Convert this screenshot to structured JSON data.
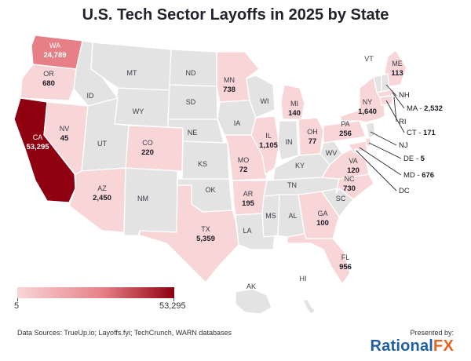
{
  "title": "U.S. Tech Sector Layoffs in 2025 by State",
  "colors": {
    "nodata": "#e3e3e3",
    "low": "#f8d6d8",
    "mid": "#e67f86",
    "high": "#8f0010",
    "brand_blue": "#1f5fa8",
    "brand_orange": "#e3641b"
  },
  "legend": {
    "min_label": "5",
    "max_label": "53,295"
  },
  "footer": {
    "sources": "Data Sources: TrueUp.io; Layoffs.fyi; TechCrunch, WARN databases",
    "presented_by": "Presented by:",
    "brand_part1": "Rational",
    "brand_part2": "FX"
  },
  "states": [
    {
      "abbr": "WA",
      "value": "24,789",
      "shade": "mid"
    },
    {
      "abbr": "OR",
      "value": "680",
      "shade": "low"
    },
    {
      "abbr": "CA",
      "value": "53,295",
      "shade": "high"
    },
    {
      "abbr": "NV",
      "value": "45",
      "shade": "low"
    },
    {
      "abbr": "ID",
      "value": "",
      "shade": "none"
    },
    {
      "abbr": "MT",
      "value": "",
      "shade": "none"
    },
    {
      "abbr": "WY",
      "value": "",
      "shade": "none"
    },
    {
      "abbr": "UT",
      "value": "",
      "shade": "none"
    },
    {
      "abbr": "CO",
      "value": "220",
      "shade": "low"
    },
    {
      "abbr": "AZ",
      "value": "2,450",
      "shade": "low"
    },
    {
      "abbr": "NM",
      "value": "",
      "shade": "none"
    },
    {
      "abbr": "ND",
      "value": "",
      "shade": "none"
    },
    {
      "abbr": "SD",
      "value": "",
      "shade": "none"
    },
    {
      "abbr": "NE",
      "value": "",
      "shade": "none"
    },
    {
      "abbr": "KS",
      "value": "",
      "shade": "none"
    },
    {
      "abbr": "OK",
      "value": "",
      "shade": "none"
    },
    {
      "abbr": "TX",
      "value": "5,359",
      "shade": "low"
    },
    {
      "abbr": "MN",
      "value": "738",
      "shade": "low"
    },
    {
      "abbr": "IA",
      "value": "",
      "shade": "none"
    },
    {
      "abbr": "MO",
      "value": "72",
      "shade": "low"
    },
    {
      "abbr": "AR",
      "value": "195",
      "shade": "low"
    },
    {
      "abbr": "LA",
      "value": "",
      "shade": "none"
    },
    {
      "abbr": "WI",
      "value": "",
      "shade": "none"
    },
    {
      "abbr": "IL",
      "value": "1,105",
      "shade": "low"
    },
    {
      "abbr": "MI",
      "value": "140",
      "shade": "low"
    },
    {
      "abbr": "IN",
      "value": "",
      "shade": "none"
    },
    {
      "abbr": "OH",
      "value": "77",
      "shade": "low"
    },
    {
      "abbr": "KY",
      "value": "",
      "shade": "none"
    },
    {
      "abbr": "TN",
      "value": "",
      "shade": "none"
    },
    {
      "abbr": "MS",
      "value": "",
      "shade": "none"
    },
    {
      "abbr": "AL",
      "value": "",
      "shade": "none"
    },
    {
      "abbr": "GA",
      "value": "100",
      "shade": "low"
    },
    {
      "abbr": "FL",
      "value": "956",
      "shade": "low"
    },
    {
      "abbr": "SC",
      "value": "",
      "shade": "none"
    },
    {
      "abbr": "NC",
      "value": "730",
      "shade": "low"
    },
    {
      "abbr": "VA",
      "value": "120",
      "shade": "low"
    },
    {
      "abbr": "WV",
      "value": "",
      "shade": "none"
    },
    {
      "abbr": "PA",
      "value": "256",
      "shade": "low"
    },
    {
      "abbr": "NY",
      "value": "1,640",
      "shade": "low"
    },
    {
      "abbr": "ME",
      "value": "113",
      "shade": "low"
    },
    {
      "abbr": "VT",
      "value": "",
      "shade": "none"
    },
    {
      "abbr": "AK",
      "value": "",
      "shade": "none"
    },
    {
      "abbr": "HI",
      "value": "",
      "shade": "none"
    }
  ],
  "callouts": [
    {
      "abbr": "NH",
      "value": ""
    },
    {
      "abbr": "MA",
      "value": "2,532"
    },
    {
      "abbr": "RI",
      "value": ""
    },
    {
      "abbr": "CT",
      "value": "171"
    },
    {
      "abbr": "NJ",
      "value": ""
    },
    {
      "abbr": "DE",
      "value": "5"
    },
    {
      "abbr": "MD",
      "value": "676"
    },
    {
      "abbr": "DC",
      "value": ""
    }
  ]
}
